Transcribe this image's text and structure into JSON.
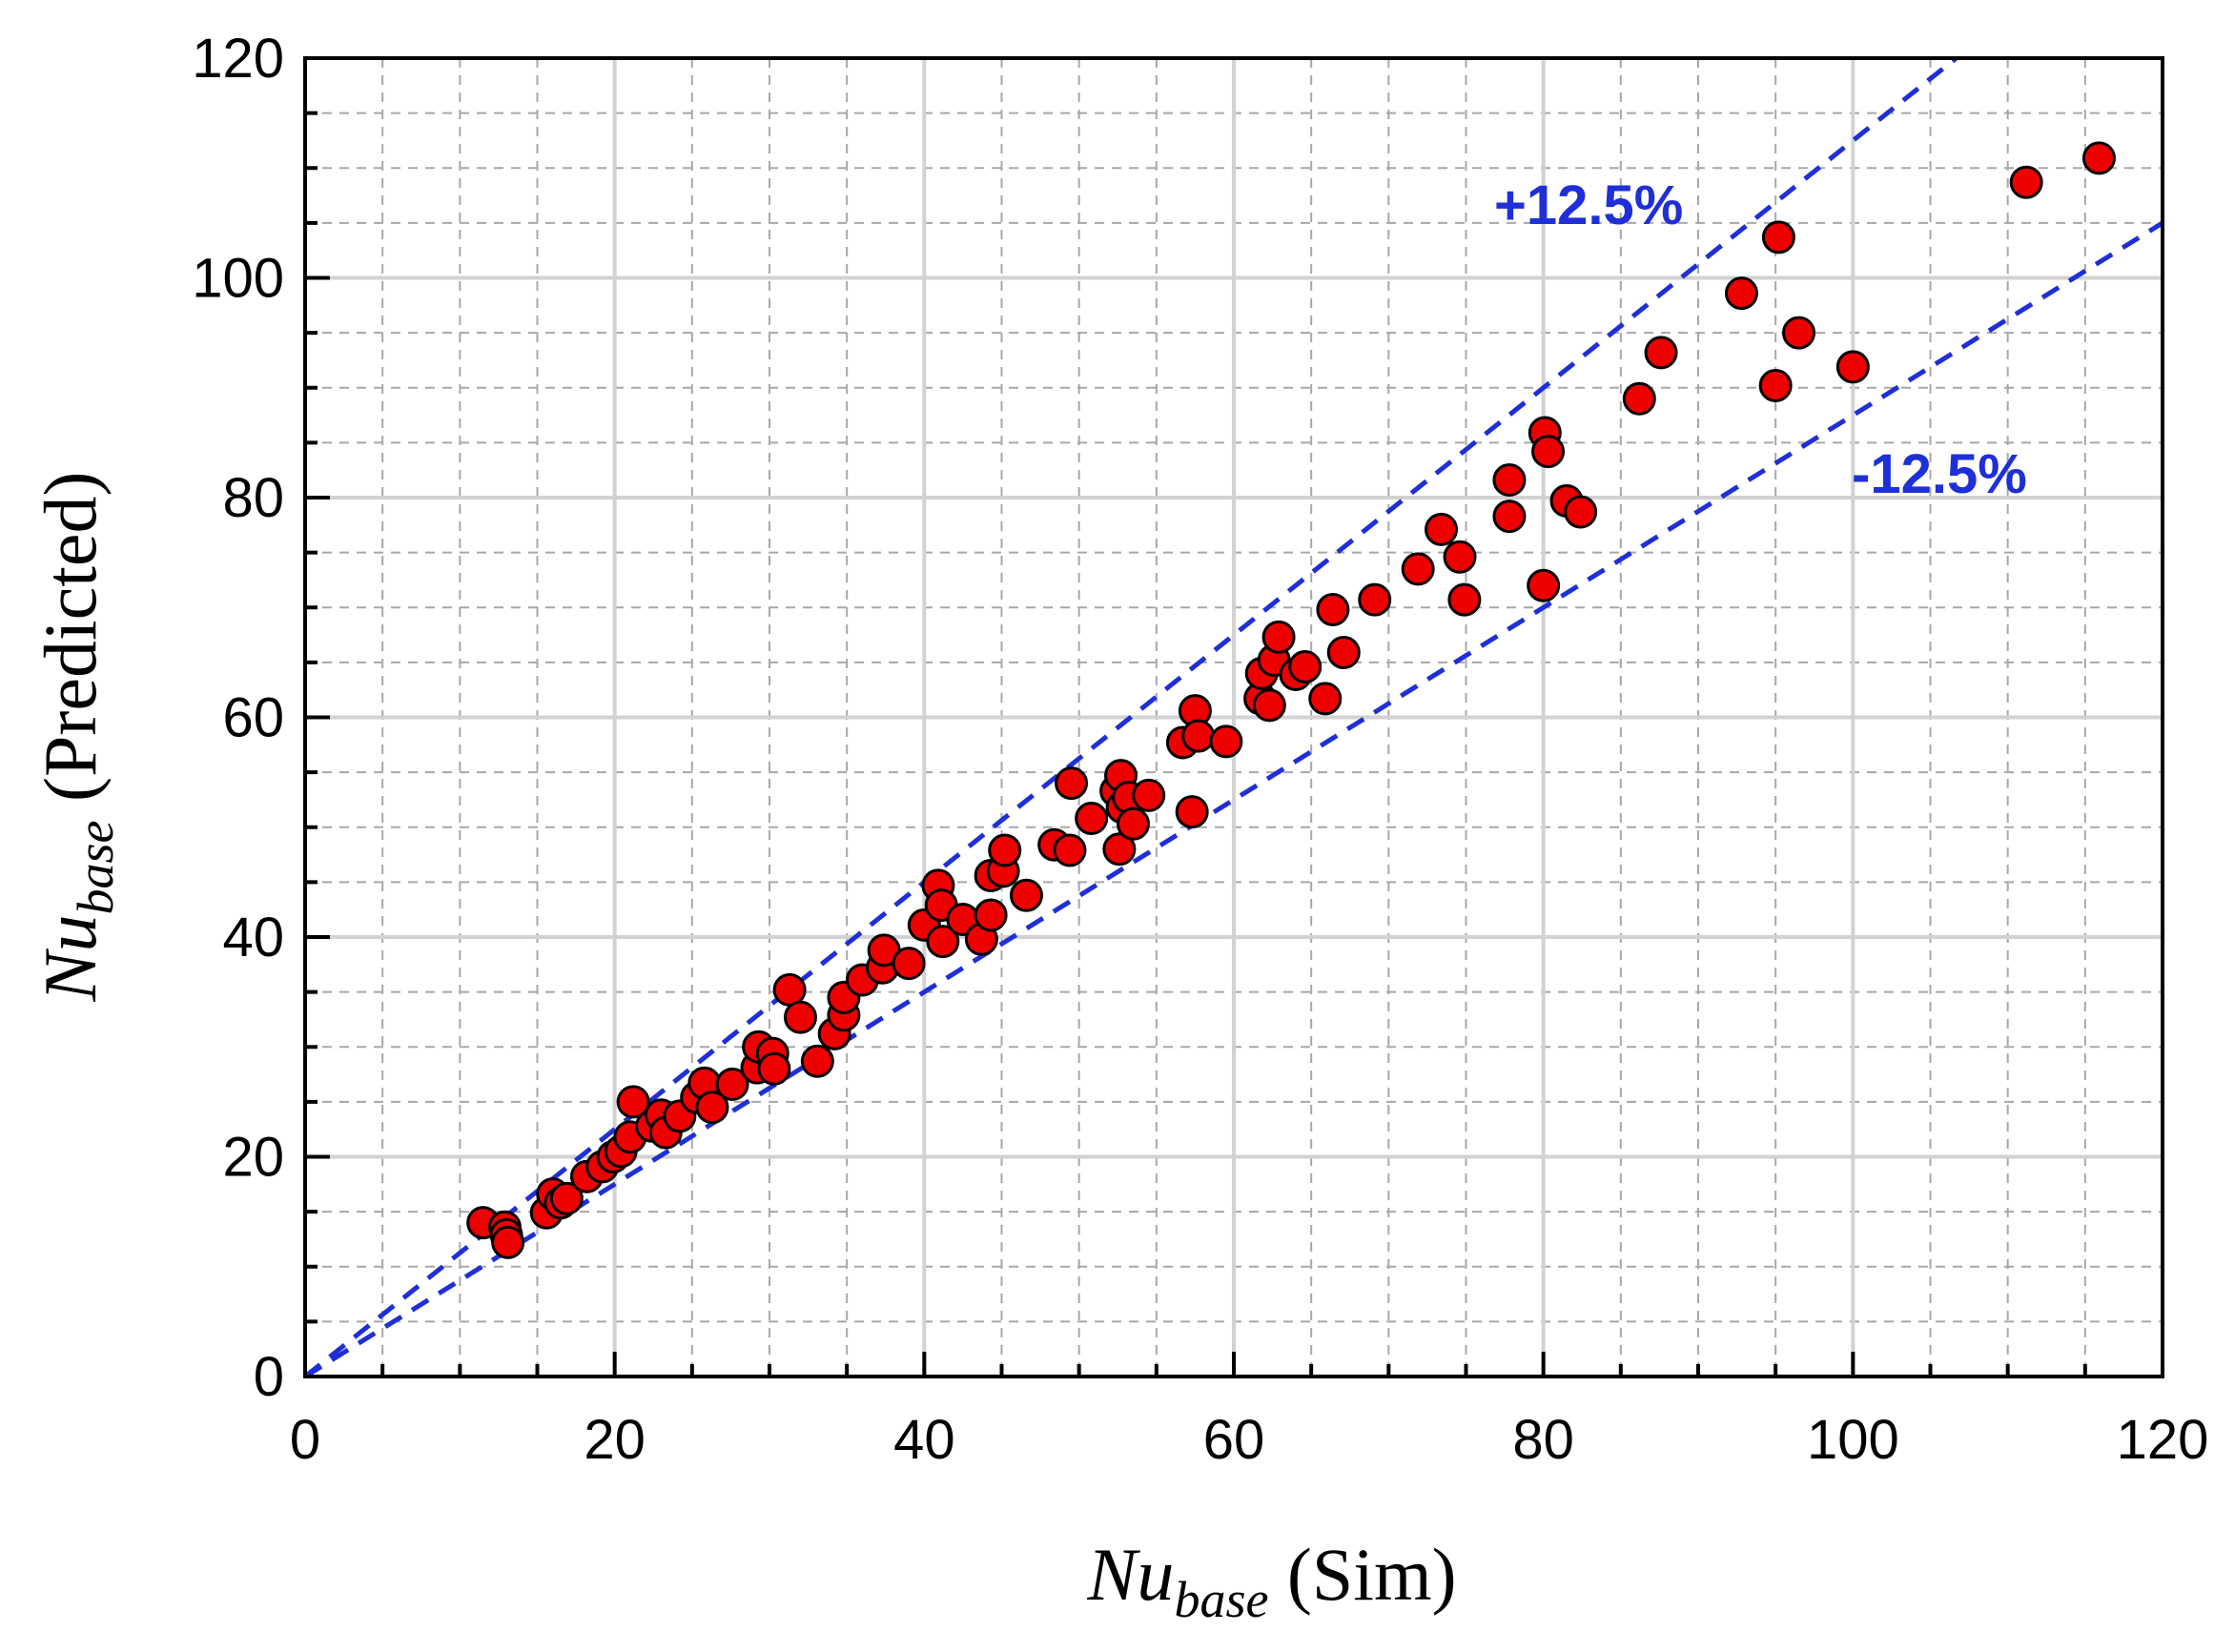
{
  "chart_data": {
    "type": "scatter",
    "title": "",
    "xlabel": {
      "main": "Nu",
      "subscript": "base",
      "suffix": " (Sim)"
    },
    "ylabel": {
      "main": "Nu",
      "subscript": "base",
      "suffix": " (Predicted)"
    },
    "xlim": [
      0,
      120
    ],
    "ylim": [
      0,
      120
    ],
    "x_ticks": [
      "0",
      "20",
      "40",
      "60",
      "80",
      "100",
      "120"
    ],
    "y_ticks": [
      "0",
      "20",
      "40",
      "60",
      "80",
      "100",
      "120"
    ],
    "grid": true,
    "legend": "none",
    "colors": {
      "marker_fill": "#ee0000",
      "marker_edge": "#000000",
      "band_line": "#1f2fd8",
      "band_text": "#1f2fd8",
      "major_grid": "#d2d2d2",
      "minor_grid": "#a8a8a8"
    },
    "bands": [
      {
        "label": "+12.5%",
        "slope": 1.125
      },
      {
        "label": "-12.5%",
        "slope": 0.875
      }
    ],
    "series": [
      {
        "name": "Nu_base",
        "points": [
          [
            11.5,
            14.0
          ],
          [
            12.9,
            13.6
          ],
          [
            13.0,
            12.9
          ],
          [
            13.1,
            12.2
          ],
          [
            15.6,
            14.9
          ],
          [
            16.0,
            16.6
          ],
          [
            16.5,
            15.8
          ],
          [
            16.9,
            16.2
          ],
          [
            18.2,
            18.2
          ],
          [
            19.2,
            19.1
          ],
          [
            19.9,
            20.0
          ],
          [
            20.4,
            20.5
          ],
          [
            21.0,
            21.8
          ],
          [
            21.2,
            25.0
          ],
          [
            22.4,
            22.8
          ],
          [
            23.0,
            23.8
          ],
          [
            23.3,
            22.2
          ],
          [
            24.2,
            23.7
          ],
          [
            25.3,
            25.4
          ],
          [
            25.8,
            26.7
          ],
          [
            26.3,
            24.5
          ],
          [
            27.6,
            26.6
          ],
          [
            29.2,
            28.1
          ],
          [
            29.3,
            30.0
          ],
          [
            30.2,
            29.4
          ],
          [
            30.3,
            28.0
          ],
          [
            31.3,
            35.2
          ],
          [
            32.0,
            32.7
          ],
          [
            33.1,
            28.7
          ],
          [
            34.2,
            31.2
          ],
          [
            34.8,
            32.9
          ],
          [
            34.8,
            34.5
          ],
          [
            36.0,
            36.1
          ],
          [
            37.3,
            37.2
          ],
          [
            37.4,
            38.8
          ],
          [
            39.0,
            37.6
          ],
          [
            40.0,
            41.1
          ],
          [
            40.9,
            44.7
          ],
          [
            41.1,
            42.9
          ],
          [
            41.2,
            39.6
          ],
          [
            42.5,
            41.6
          ],
          [
            43.7,
            39.8
          ],
          [
            44.3,
            42.0
          ],
          [
            44.3,
            45.6
          ],
          [
            45.1,
            46.0
          ],
          [
            45.2,
            47.9
          ],
          [
            46.6,
            43.8
          ],
          [
            48.4,
            48.4
          ],
          [
            49.4,
            47.9
          ],
          [
            49.5,
            54.0
          ],
          [
            50.8,
            50.8
          ],
          [
            52.4,
            53.3
          ],
          [
            52.6,
            48.0
          ],
          [
            52.7,
            54.7
          ],
          [
            52.8,
            51.8
          ],
          [
            53.2,
            52.7
          ],
          [
            53.5,
            50.3
          ],
          [
            54.5,
            52.9
          ],
          [
            56.7,
            57.7
          ],
          [
            57.3,
            51.4
          ],
          [
            57.5,
            60.6
          ],
          [
            57.7,
            58.3
          ],
          [
            59.5,
            57.8
          ],
          [
            61.7,
            61.7
          ],
          [
            61.8,
            64.0
          ],
          [
            62.3,
            61.1
          ],
          [
            62.6,
            65.2
          ],
          [
            62.9,
            67.3
          ],
          [
            64.0,
            63.9
          ],
          [
            64.6,
            64.6
          ],
          [
            65.9,
            61.7
          ],
          [
            66.4,
            69.8
          ],
          [
            67.1,
            65.9
          ],
          [
            69.1,
            70.7
          ],
          [
            71.9,
            73.5
          ],
          [
            73.4,
            77.1
          ],
          [
            74.6,
            74.6
          ],
          [
            74.9,
            70.7
          ],
          [
            77.8,
            81.6
          ],
          [
            77.8,
            78.3
          ],
          [
            80.0,
            72.0
          ],
          [
            80.1,
            85.9
          ],
          [
            80.3,
            84.2
          ],
          [
            81.5,
            79.7
          ],
          [
            82.4,
            78.7
          ],
          [
            86.2,
            89.0
          ],
          [
            87.6,
            93.2
          ],
          [
            92.8,
            98.6
          ],
          [
            95.0,
            90.2
          ],
          [
            95.2,
            103.7
          ],
          [
            96.5,
            95.0
          ],
          [
            100.0,
            91.9
          ],
          [
            111.2,
            108.7
          ],
          [
            115.9,
            110.9
          ]
        ]
      }
    ]
  }
}
